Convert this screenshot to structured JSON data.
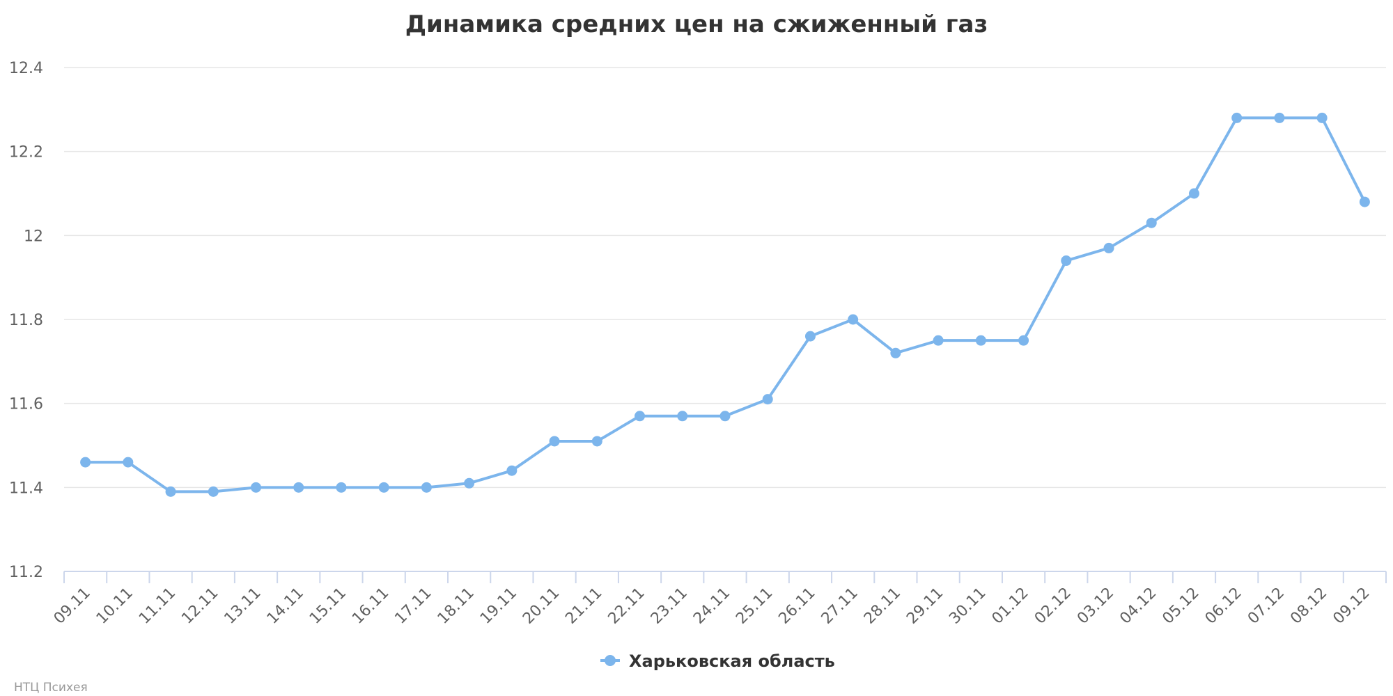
{
  "chart_data": {
    "type": "line",
    "title": "Динамика средних цен на сжиженный газ",
    "xlabel": "",
    "ylabel": "",
    "ylim": [
      11.2,
      12.4
    ],
    "yticks": [
      "11.2",
      "11.4",
      "11.6",
      "11.8",
      "12",
      "12.2",
      "12.4"
    ],
    "grid": true,
    "legend_position": "bottom",
    "categories": [
      "09.11",
      "10.11",
      "11.11",
      "12.11",
      "13.11",
      "14.11",
      "15.11",
      "16.11",
      "17.11",
      "18.11",
      "19.11",
      "20.11",
      "21.11",
      "22.11",
      "23.11",
      "24.11",
      "25.11",
      "26.11",
      "27.11",
      "28.11",
      "29.11",
      "30.11",
      "01.12",
      "02.12",
      "03.12",
      "04.12",
      "05.12",
      "06.12",
      "07.12",
      "08.12",
      "09.12"
    ],
    "series": [
      {
        "name": "Харьковская область",
        "color": "#7cb5ec",
        "values": [
          11.46,
          11.46,
          11.39,
          11.39,
          11.4,
          11.4,
          11.4,
          11.4,
          11.4,
          11.41,
          11.44,
          11.51,
          11.51,
          11.57,
          11.57,
          11.57,
          11.61,
          11.76,
          11.8,
          11.72,
          11.75,
          11.75,
          11.75,
          11.94,
          11.97,
          12.03,
          12.1,
          12.28,
          12.28,
          12.28,
          12.08
        ]
      }
    ]
  },
  "credit": "НТЦ Психея"
}
